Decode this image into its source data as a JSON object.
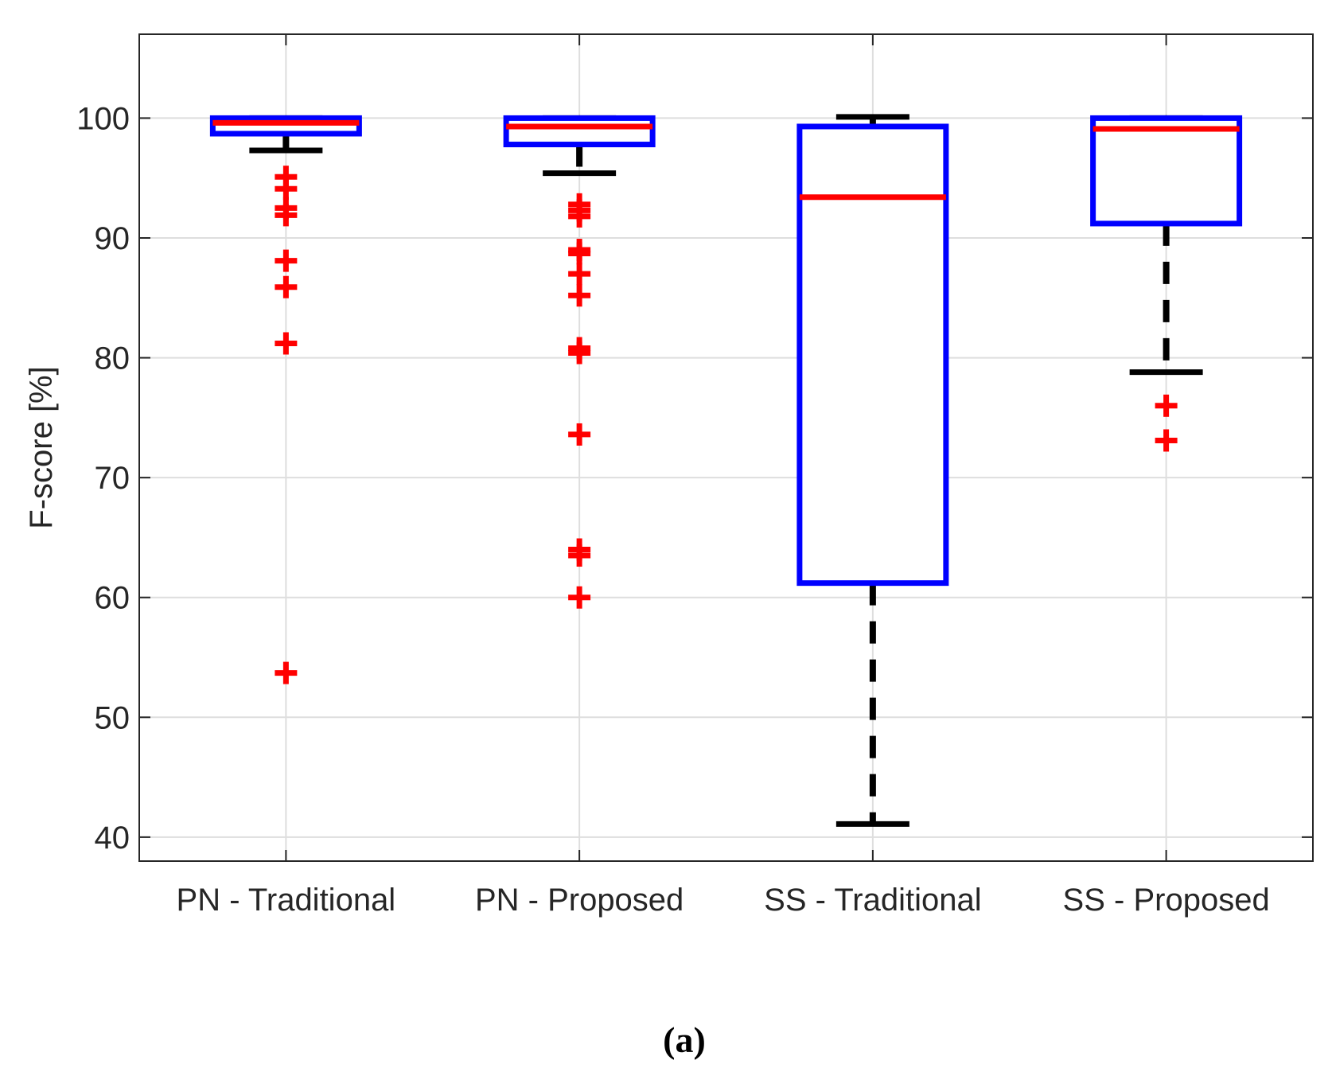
{
  "chart_data": {
    "type": "box",
    "ylabel": "F-score [%]",
    "ylim": [
      38,
      107
    ],
    "yticks": [
      40,
      50,
      60,
      70,
      80,
      90,
      100
    ],
    "grid": true,
    "categories": [
      "PN - Traditional",
      "PN - Proposed",
      "SS - Traditional",
      "SS - Proposed"
    ],
    "boxes": [
      {
        "name": "PN - Traditional",
        "q1": 98.7,
        "median": 99.6,
        "q3": 100.0,
        "whisker_low": 97.3,
        "whisker_high": 100.0,
        "outliers": [
          95.1,
          94.1,
          92.5,
          91.9,
          88.1,
          85.9,
          81.2,
          53.7
        ]
      },
      {
        "name": "PN - Proposed",
        "q1": 97.8,
        "median": 99.3,
        "q3": 100.0,
        "whisker_low": 95.4,
        "whisker_high": 100.0,
        "outliers": [
          92.8,
          92.3,
          91.8,
          89.0,
          88.7,
          87.0,
          85.2,
          80.8,
          80.4,
          73.6,
          64.0,
          63.5,
          60.0
        ]
      },
      {
        "name": "SS - Traditional",
        "q1": 61.2,
        "median": 93.4,
        "q3": 99.3,
        "whisker_low": 41.1,
        "whisker_high": 100.1,
        "outliers": []
      },
      {
        "name": "SS - Proposed",
        "q1": 91.2,
        "median": 99.1,
        "q3": 100.0,
        "whisker_low": 78.8,
        "whisker_high": 100.0,
        "outliers": [
          76.0,
          73.1
        ]
      }
    ],
    "colors": {
      "box": "#0000ff",
      "median": "#ff0000",
      "whisker": "#000000",
      "outlier": "#ff0000",
      "grid": "#dedede",
      "axis": "#262626"
    }
  },
  "caption": "(a)"
}
